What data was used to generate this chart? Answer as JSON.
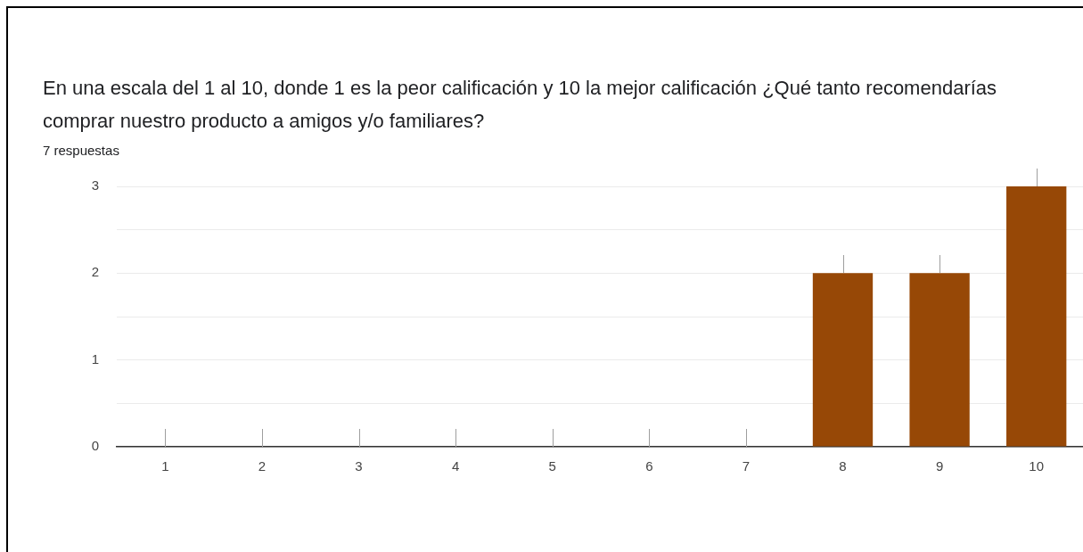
{
  "chart_data": {
    "type": "bar",
    "title": "En una escala del 1 al 10, donde 1 es la peor calificación y 10 la mejor calificación ¿Qué tanto recomendarías comprar nuestro producto a amigos y/o familiares?",
    "subtitle": "7 respuestas",
    "categories": [
      "1",
      "2",
      "3",
      "4",
      "5",
      "6",
      "7",
      "8",
      "9",
      "10"
    ],
    "values": [
      0,
      0,
      0,
      0,
      0,
      0,
      0,
      2,
      2,
      3
    ],
    "color": "#974806",
    "ylim": [
      0,
      3
    ],
    "yticks": [
      0,
      {
        "value": 0.5,
        "label": null
      },
      1,
      {
        "value": 1.5,
        "label": null
      },
      2,
      {
        "value": 2.5,
        "label": null
      },
      3
    ],
    "grid": "y",
    "legend": false
  }
}
